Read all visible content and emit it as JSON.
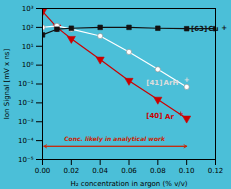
{
  "chart_data": {
    "type": "line",
    "xlabel": "H₂ concentration in argon (% v/v)",
    "ylabel": "Ion Signal [mV x ns]",
    "log": "y",
    "grid": false,
    "xlim": [
      0.0,
      0.12
    ],
    "ylim": [
      1e-05,
      1000
    ],
    "xticks": [
      {
        "value": 0.0,
        "label": "0.00"
      },
      {
        "value": 0.02,
        "label": "0.02"
      },
      {
        "value": 0.04,
        "label": "0.04"
      },
      {
        "value": 0.06,
        "label": "0.06"
      },
      {
        "value": 0.08,
        "label": "0.08"
      },
      {
        "value": 0.1,
        "label": "0.10"
      },
      {
        "value": 0.12,
        "label": "0.12"
      }
    ],
    "yticks": [
      {
        "value": 1e-05,
        "label": "10⁻⁵"
      },
      {
        "value": 0.0001,
        "label": "10⁻⁴"
      },
      {
        "value": 0.001,
        "label": "10⁻³"
      },
      {
        "value": 0.01,
        "label": "10⁻²"
      },
      {
        "value": 0.1,
        "label": "10⁻¹"
      },
      {
        "value": 1,
        "label": "10⁰"
      },
      {
        "value": 10,
        "label": "10¹"
      },
      {
        "value": 100,
        "label": "10²"
      },
      {
        "value": 1000,
        "label": "10³"
      }
    ],
    "series": [
      {
        "color": "#cc0000",
        "marker": "triangle_down",
        "x": [
          0.0,
          0.01,
          0.02,
          0.04,
          0.06,
          0.08,
          0.1
        ],
        "values": [
          700,
          100,
          25,
          2.0,
          0.15,
          0.015,
          0.0015
        ]
      },
      {
        "color": "#ffffff",
        "marker": "circle",
        "x": [
          0.0,
          0.01,
          0.02,
          0.04,
          0.06,
          0.08,
          0.1
        ],
        "values": [
          100,
          120,
          80,
          35,
          5,
          0.6,
          0.07
        ]
      },
      {
        "color": "#111111",
        "marker": "square",
        "x": [
          0.0,
          0.01,
          0.02,
          0.04,
          0.06,
          0.08,
          0.1,
          0.12
        ],
        "values": [
          40,
          80,
          90,
          100,
          100,
          90,
          85,
          85
        ]
      }
    ],
    "labels": [
      {
        "text": "[63]",
        "x": 0.103,
        "y": 85,
        "color": "#111111"
      },
      {
        "text": "Cu",
        "x": 0.115,
        "y": 82,
        "color": "#111111"
      },
      {
        "text": "+",
        "x": 0.124,
        "y": 90,
        "color": "#111111"
      },
      {
        "text": "[41]",
        "x": 0.072,
        "y": 0.12,
        "color": "#dddddd"
      },
      {
        "text": "ArH",
        "x": 0.084,
        "y": 0.11,
        "color": "#dddddd"
      },
      {
        "text": "+",
        "x": 0.098,
        "y": 0.16,
        "color": "#dddddd"
      },
      {
        "text": "[40]",
        "x": 0.072,
        "y": 0.002,
        "color": "#cc0000"
      },
      {
        "text": "Ar",
        "x": 0.085,
        "y": 0.0018,
        "color": "#cc0000"
      },
      {
        "text": "+",
        "x": 0.094,
        "y": 0.0025,
        "color": "#cc0000"
      }
    ],
    "annotation": {
      "text": "Conc. likely in analytical work",
      "x": 0.05,
      "y": 8e-05,
      "color": "#cc2200",
      "arrow_x_start": 0.001,
      "arrow_x_end": 0.1,
      "arrow_y": 5e-05
    }
  }
}
